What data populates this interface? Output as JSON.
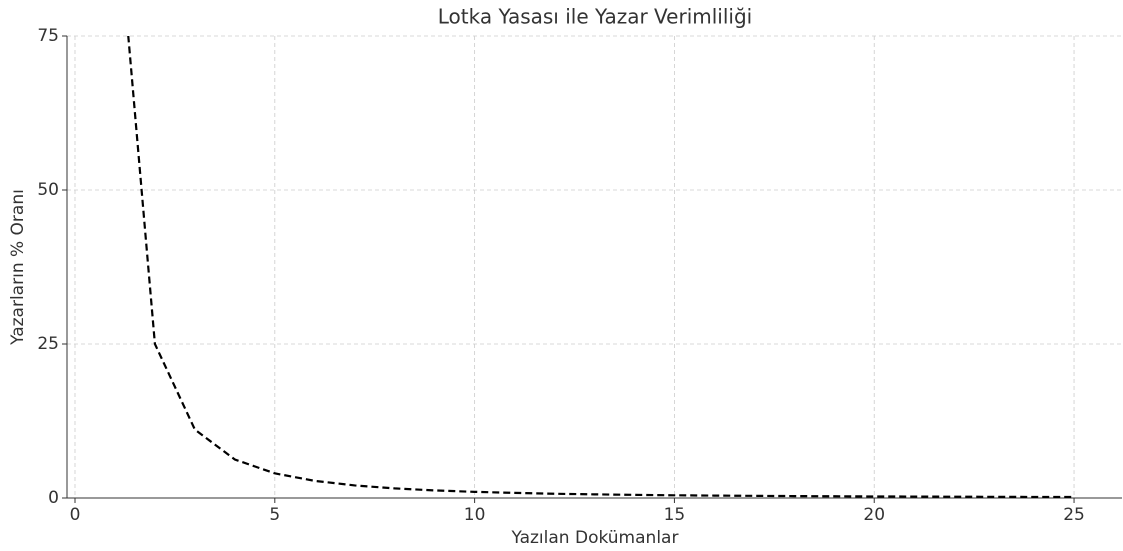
{
  "chart_data": {
    "type": "line",
    "title": "Lotka Yasası ile Yazar Verimliliği",
    "x_label": "Yazılan Dokümanlar",
    "y_label": "Yazarların % Oranı",
    "x": [
      1,
      2,
      3,
      4,
      5,
      6,
      7,
      8,
      9,
      10,
      11,
      12,
      13,
      14,
      15,
      16,
      17,
      18,
      19,
      20,
      21,
      22,
      23,
      24,
      25
    ],
    "series": [
      {
        "name": "Lotka",
        "color": "#000000",
        "dashed": true,
        "values": [
          100,
          25,
          11.11,
          6.25,
          4,
          2.78,
          2.04,
          1.56,
          1.23,
          1,
          0.83,
          0.69,
          0.59,
          0.51,
          0.44,
          0.39,
          0.35,
          0.31,
          0.28,
          0.25,
          0.23,
          0.21,
          0.19,
          0.17,
          0.16
        ]
      }
    ],
    "xlim": [
      -0.2,
      26.2
    ],
    "xticks": [
      0,
      5,
      10,
      15,
      20,
      25
    ],
    "ylim": [
      0,
      75
    ],
    "yticks": [
      0,
      25,
      50,
      75
    ],
    "grid": true
  }
}
